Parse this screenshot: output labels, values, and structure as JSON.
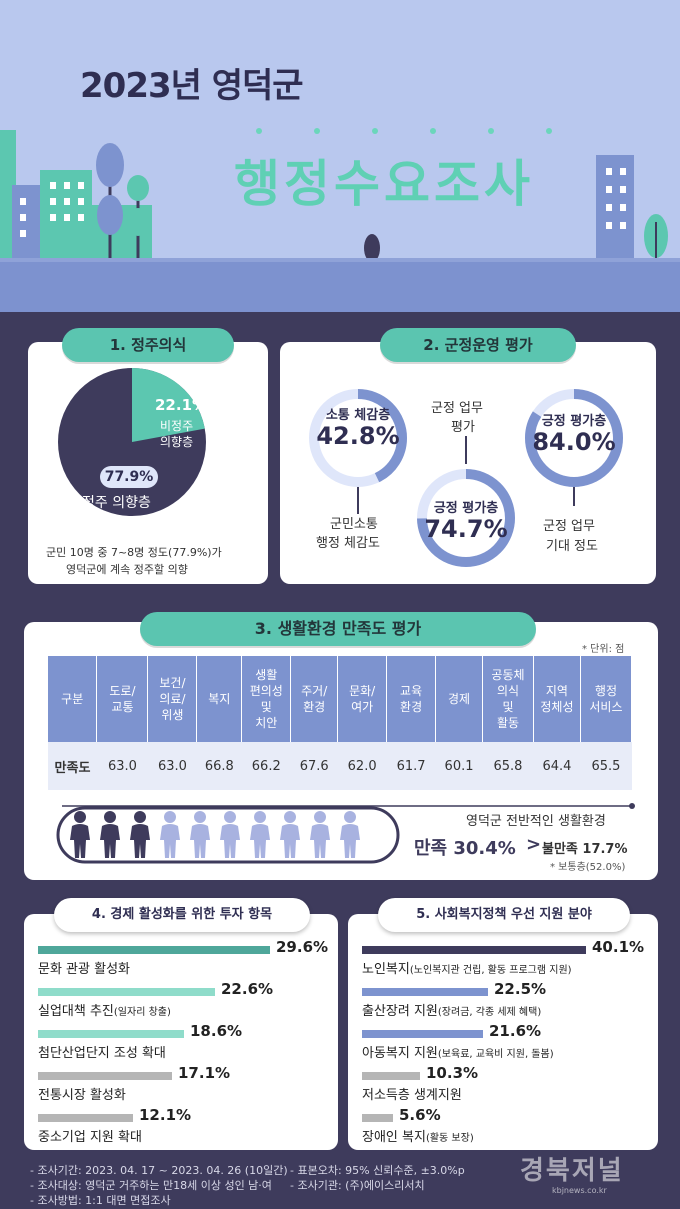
{
  "header": {
    "title_year": "2023년 영덕군",
    "title_main": "행정수요조사"
  },
  "section1": {
    "title": "1. 정주의식",
    "slice_small_pct": "22.1%",
    "slice_small_label_1": "비정주",
    "slice_small_label_2": "의향층",
    "slice_big_pct": "77.9%",
    "slice_big_label": "정주 의향층",
    "caption_1": "군민 10명 중 7~8명 정도(77.9%)가",
    "caption_2": "영덕군에 계속 정주할 의향"
  },
  "section2": {
    "title": "2. 군정운영 평가",
    "ring1_label": "소통 체감층",
    "ring1_value": "42.8%",
    "ring1_caption_1": "군민소통",
    "ring1_caption_2": "행정 체감도",
    "ring2_label": "긍정 평가층",
    "ring2_value": "74.7%",
    "ring2_caption_1": "군정 업무",
    "ring2_caption_2": "평가",
    "ring3_label": "긍정 평가층",
    "ring3_value": "84.0%",
    "ring3_caption_1": "군정 업무",
    "ring3_caption_2": "기대 정도"
  },
  "section3": {
    "title": "3. 생활환경 만족도 평가",
    "unit": "* 단위: 점",
    "headers": [
      "구분",
      "도로/\n교통",
      "보건/\n의료/\n위생",
      "복지",
      "생활\n편의성\n및\n치안",
      "주거/\n환경",
      "문화/\n여가",
      "교육\n환경",
      "경제",
      "공동체\n의식\n및\n활동",
      "지역\n정체성",
      "행정\n서비스"
    ],
    "row_label": "만족도",
    "values": [
      "63.0",
      "63.0",
      "66.8",
      "66.2",
      "67.6",
      "62.0",
      "61.7",
      "60.1",
      "65.8",
      "64.4",
      "65.5"
    ],
    "summary_title": "영덕군 전반적인 생활환경",
    "satisfied": "만족 30.4%",
    "compare": ">",
    "dissatisfied": "불만족 17.7%",
    "neutral": "* 보통층(52.0%)"
  },
  "section4": {
    "title": "4. 경제 활성화를 위한 투자 항목",
    "items": [
      {
        "label": "문화 관광 활성화",
        "sub": "",
        "value": "29.6%",
        "color": "#4fa79a"
      },
      {
        "label": "실업대책 추진",
        "sub": "(일자리 창출)",
        "value": "22.6%",
        "color": "#8fdcca"
      },
      {
        "label": "첨단산업단지 조성 확대",
        "sub": "",
        "value": "18.6%",
        "color": "#8fdcca"
      },
      {
        "label": "전통시장 활성화",
        "sub": "",
        "value": "17.1%",
        "color": "#b5b5b5"
      },
      {
        "label": "중소기업 지원 확대",
        "sub": "",
        "value": "12.1%",
        "color": "#b5b5b5"
      }
    ]
  },
  "section5": {
    "title": "5. 사회복지정책 우선 지원 분야",
    "items": [
      {
        "label": "노인복지",
        "sub": "(노인복지관 건립, 활동 프로그램 지원)",
        "value": "40.1%",
        "color": "#3e3b5c"
      },
      {
        "label": "출산장려 지원",
        "sub": "(장려금, 각종 세제 혜택)",
        "value": "22.5%",
        "color": "#7d93cf"
      },
      {
        "label": "아동복지 지원",
        "sub": "(보육료, 교육비 지원, 돌봄)",
        "value": "21.6%",
        "color": "#7d93cf"
      },
      {
        "label": "저소득층 생계지원",
        "sub": "",
        "value": "10.3%",
        "color": "#b5b5b5"
      },
      {
        "label": "장애인 복지",
        "sub": "(활동 보장)",
        "value": "5.6%",
        "color": "#b5b5b5"
      }
    ]
  },
  "footer": {
    "line1a": "- 조사기간: 2023. 04. 17 ~ 2023. 04. 26 (10일간)",
    "line2a": "- 조사대상: 영덕군 거주하는 만18세 이상 성인 남·여",
    "line3a": "- 조사방법: 1:1 대면 면접조사",
    "line1b": "- 표본오차: 95% 신뢰수준, ±3.0%p",
    "line2b": "- 조사기관: (주)에이스리서치",
    "logo": "경북저널",
    "logo_url": "kbjnews.co.kr"
  },
  "chart_data": [
    {
      "type": "pie",
      "title": "1. 정주의식",
      "categories": [
        "정주 의향층",
        "비정주 의향층"
      ],
      "values": [
        77.9,
        22.1
      ]
    },
    {
      "type": "pie",
      "title": "2. 군정운영 평가",
      "categories": [
        "소통 체감층",
        "긍정 평가층 (군정 업무 평가)",
        "긍정 평가층 (군정 업무 기대 정도)"
      ],
      "values": [
        42.8,
        74.7,
        84.0
      ]
    },
    {
      "type": "table",
      "title": "3. 생활환경 만족도 평가",
      "categories": [
        "도로/교통",
        "보건/의료/위생",
        "복지",
        "생활편의성 및 치안",
        "주거/환경",
        "문화/여가",
        "교육환경",
        "경제",
        "공동체의식 및 활동",
        "지역정체성",
        "행정서비스"
      ],
      "values": [
        63.0,
        63.0,
        66.8,
        66.2,
        67.6,
        62.0,
        61.7,
        60.1,
        65.8,
        64.4,
        65.5
      ]
    },
    {
      "type": "bar",
      "title": "4. 경제 활성화를 위한 투자 항목",
      "categories": [
        "문화 관광 활성화",
        "실업대책 추진(일자리 창출)",
        "첨단산업단지 조성 확대",
        "전통시장 활성화",
        "중소기업 지원 확대"
      ],
      "values": [
        29.6,
        22.6,
        18.6,
        17.1,
        12.1
      ]
    },
    {
      "type": "bar",
      "title": "5. 사회복지정책 우선 지원 분야",
      "categories": [
        "노인복지",
        "출산장려 지원",
        "아동복지 지원",
        "저소득층 생계지원",
        "장애인 복지"
      ],
      "values": [
        40.1,
        22.5,
        21.6,
        10.3,
        5.6
      ]
    }
  ]
}
